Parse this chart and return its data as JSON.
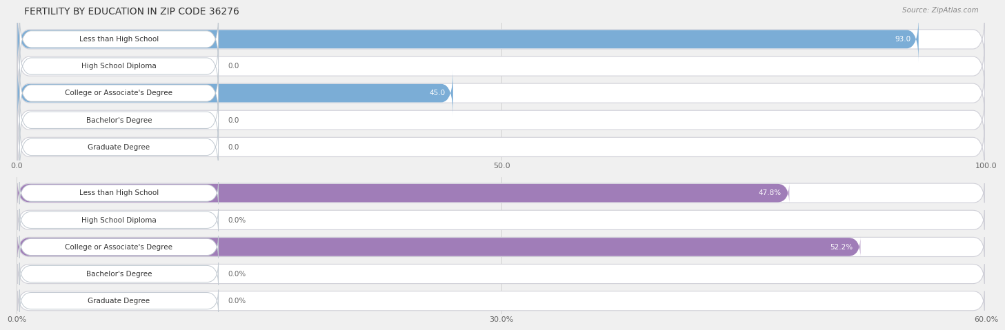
{
  "title": "FERTILITY BY EDUCATION IN ZIP CODE 36276",
  "source": "Source: ZipAtlas.com",
  "top_chart": {
    "categories": [
      "Less than High School",
      "High School Diploma",
      "College or Associate's Degree",
      "Bachelor's Degree",
      "Graduate Degree"
    ],
    "values": [
      93.0,
      0.0,
      45.0,
      0.0,
      0.0
    ],
    "value_labels": [
      "93.0",
      "0.0",
      "45.0",
      "0.0",
      "0.0"
    ],
    "bar_color": "#7badd6",
    "bar_color_light": "#b8d0e8",
    "xlim": [
      0,
      100
    ],
    "xticks": [
      0.0,
      50.0,
      100.0
    ],
    "xtick_labels": [
      "0.0",
      "50.0",
      "100.0"
    ]
  },
  "bottom_chart": {
    "categories": [
      "Less than High School",
      "High School Diploma",
      "College or Associate's Degree",
      "Bachelor's Degree",
      "Graduate Degree"
    ],
    "values": [
      47.8,
      0.0,
      52.2,
      0.0,
      0.0
    ],
    "value_labels": [
      "47.8%",
      "0.0%",
      "52.2%",
      "0.0%",
      "0.0%"
    ],
    "bar_color": "#a07db8",
    "bar_color_light": "#cdb5d8",
    "xlim": [
      0,
      60
    ],
    "xticks": [
      0.0,
      30.0,
      60.0
    ],
    "xtick_labels": [
      "0.0%",
      "30.0%",
      "60.0%"
    ]
  },
  "bg_color": "#f0f0f0",
  "row_bg_color": "#e8e8ee",
  "row_bg_outline": "#d0d0d8",
  "white": "#ffffff",
  "label_border": "#c0c8d0",
  "title_color": "#333333",
  "source_color": "#888888",
  "value_color_inside": "#ffffff",
  "value_color_outside": "#666666",
  "title_fontsize": 10,
  "source_fontsize": 7.5,
  "bar_label_fontsize": 7.5,
  "tick_fontsize": 8,
  "cat_label_fontsize": 7.5
}
